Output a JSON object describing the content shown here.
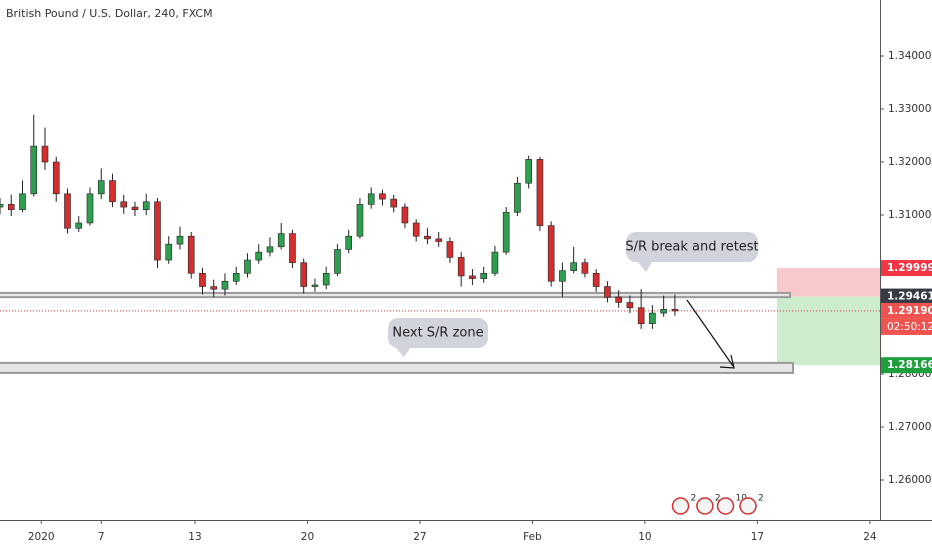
{
  "chart_data": {
    "type": "candlestick",
    "title": "British Pound / U.S. Dollar, 240, FXCM",
    "x": [
      0,
      3,
      6,
      9,
      12,
      15,
      18,
      21,
      24,
      27,
      30,
      33,
      36,
      39,
      42,
      45,
      48,
      51,
      54,
      57,
      60,
      63,
      66,
      69,
      72,
      75,
      78,
      81,
      84,
      87,
      90,
      93,
      96,
      99,
      102,
      105,
      108,
      111,
      114,
      117,
      120,
      123,
      126,
      129,
      132,
      135,
      138,
      141,
      144,
      147,
      150,
      153,
      156,
      159,
      162,
      165,
      168,
      171,
      174,
      177,
      180
    ],
    "open": [
      1.3115,
      1.312,
      1.311,
      1.314,
      1.323,
      1.32,
      1.314,
      1.3075,
      1.3085,
      1.314,
      1.3165,
      1.3125,
      1.3115,
      1.311,
      1.3125,
      1.3015,
      1.3045,
      1.306,
      1.299,
      1.2965,
      1.296,
      1.2975,
      1.299,
      1.3015,
      1.303,
      1.304,
      1.3065,
      1.301,
      1.2965,
      1.2968,
      1.299,
      1.3035,
      1.306,
      1.312,
      1.314,
      1.313,
      1.3115,
      1.3085,
      1.306,
      1.3055,
      1.305,
      1.302,
      1.2985,
      1.298,
      1.299,
      1.303,
      1.3105,
      1.316,
      1.3205,
      1.308,
      1.2975,
      1.2995,
      1.301,
      1.299,
      1.2965,
      1.2945,
      1.2935,
      1.2925,
      1.2895,
      1.2915,
      1.2922
    ],
    "high": [
      1.3132,
      1.3138,
      1.3165,
      1.3289,
      1.3265,
      1.321,
      1.315,
      1.3098,
      1.3152,
      1.3188,
      1.3178,
      1.3138,
      1.3125,
      1.314,
      1.3132,
      1.306,
      1.3078,
      1.3068,
      1.3,
      1.2978,
      1.299,
      1.3002,
      1.3028,
      1.3045,
      1.3058,
      1.3085,
      1.3072,
      1.3018,
      1.298,
      1.3002,
      1.3045,
      1.3072,
      1.3132,
      1.3152,
      1.3148,
      1.3138,
      1.3122,
      1.3092,
      1.3075,
      1.3068,
      1.3058,
      1.303,
      1.2998,
      1.3002,
      1.3042,
      1.3115,
      1.3172,
      1.3212,
      1.321,
      1.3088,
      1.301,
      1.304,
      1.3018,
      1.2998,
      1.2975,
      1.2958,
      1.2948,
      1.296,
      1.293,
      1.2948,
      1.295
    ],
    "low": [
      1.3102,
      1.3098,
      1.3105,
      1.3135,
      1.3185,
      1.3125,
      1.3065,
      1.3068,
      1.308,
      1.313,
      1.3115,
      1.3102,
      1.3098,
      1.31,
      1.3,
      1.3008,
      1.3035,
      1.298,
      1.295,
      1.2945,
      1.2948,
      1.2968,
      1.2982,
      1.3008,
      1.3022,
      1.3035,
      1.3,
      1.2952,
      1.2955,
      1.296,
      1.2985,
      1.3028,
      1.3055,
      1.3112,
      1.3118,
      1.3105,
      1.3075,
      1.305,
      1.3045,
      1.304,
      1.301,
      1.2965,
      1.2968,
      1.2972,
      1.2985,
      1.3025,
      1.3098,
      1.315,
      1.307,
      1.2965,
      1.2945,
      1.299,
      1.2982,
      1.2955,
      1.2935,
      1.2925,
      1.2915,
      1.2885,
      1.2885,
      1.2908,
      1.291
    ],
    "close": [
      1.312,
      1.311,
      1.314,
      1.323,
      1.32,
      1.314,
      1.3075,
      1.3085,
      1.314,
      1.3165,
      1.3125,
      1.3115,
      1.311,
      1.3125,
      1.3015,
      1.3045,
      1.306,
      1.299,
      1.2965,
      1.296,
      1.2975,
      1.299,
      1.3015,
      1.303,
      1.304,
      1.3065,
      1.301,
      1.2965,
      1.2968,
      1.299,
      1.3035,
      1.306,
      1.312,
      1.314,
      1.313,
      1.3115,
      1.3085,
      1.306,
      1.3055,
      1.305,
      1.302,
      1.2985,
      1.298,
      1.299,
      1.303,
      1.3105,
      1.316,
      1.3205,
      1.308,
      1.2975,
      1.2995,
      1.301,
      1.299,
      1.2965,
      1.2945,
      1.2935,
      1.2925,
      1.2895,
      1.2915,
      1.2922,
      1.2919
    ],
    "up_color": "#2e9e4f",
    "down_color": "#d32f2f",
    "xlim": [
      0,
      234.7
    ],
    "ylim": [
      1.25245,
      1.35057
    ],
    "xticks": [
      {
        "value": 11,
        "label": "2020"
      },
      {
        "value": 27,
        "label": "7"
      },
      {
        "value": 52,
        "label": "13"
      },
      {
        "value": 82,
        "label": "20"
      },
      {
        "value": 112,
        "label": "27"
      },
      {
        "value": 142,
        "label": "Feb"
      },
      {
        "value": 172,
        "label": "10"
      },
      {
        "value": 202,
        "label": "17"
      },
      {
        "value": 232,
        "label": "24"
      }
    ],
    "yticks": [
      {
        "value": 1.26,
        "label": "1.26000"
      },
      {
        "value": 1.27,
        "label": "1.27000"
      },
      {
        "value": 1.28,
        "label": "1.28000"
      },
      {
        "value": 1.31,
        "label": "1.31000"
      },
      {
        "value": 1.32,
        "label": "1.32000"
      },
      {
        "value": 1.33,
        "label": "1.33000"
      },
      {
        "value": 1.34,
        "label": "1.34000"
      }
    ],
    "zones": [
      {
        "top": 1.2953,
        "bottom": 1.2945,
        "x_end": 210.7
      },
      {
        "top": 1.2821,
        "bottom": 1.2802,
        "x_end": 211.5
      }
    ],
    "position": {
      "x_start": 207.2,
      "stop": 1.29999,
      "entry": 1.29461,
      "target": 1.28166
    },
    "price_labels": [
      {
        "value": 1.29999,
        "label": "1.29999",
        "color": "#f23645"
      },
      {
        "value": 1.29461,
        "label": "1.29461",
        "color": "#363a45"
      },
      {
        "value": 1.2919,
        "label": "1.29190",
        "color": "#ef5350"
      },
      {
        "value": 1.28166,
        "label": "1.28166",
        "color": "#1e9e3c"
      }
    ],
    "countdown": "02:50:12",
    "callouts": [
      "S/R break and retest",
      "Next S/R zone"
    ],
    "events": [
      {
        "x": 181.5,
        "label": "2"
      },
      {
        "x": 188,
        "label": "2"
      },
      {
        "x": 193.5,
        "label": "10"
      },
      {
        "x": 199.5,
        "label": "2"
      }
    ]
  }
}
